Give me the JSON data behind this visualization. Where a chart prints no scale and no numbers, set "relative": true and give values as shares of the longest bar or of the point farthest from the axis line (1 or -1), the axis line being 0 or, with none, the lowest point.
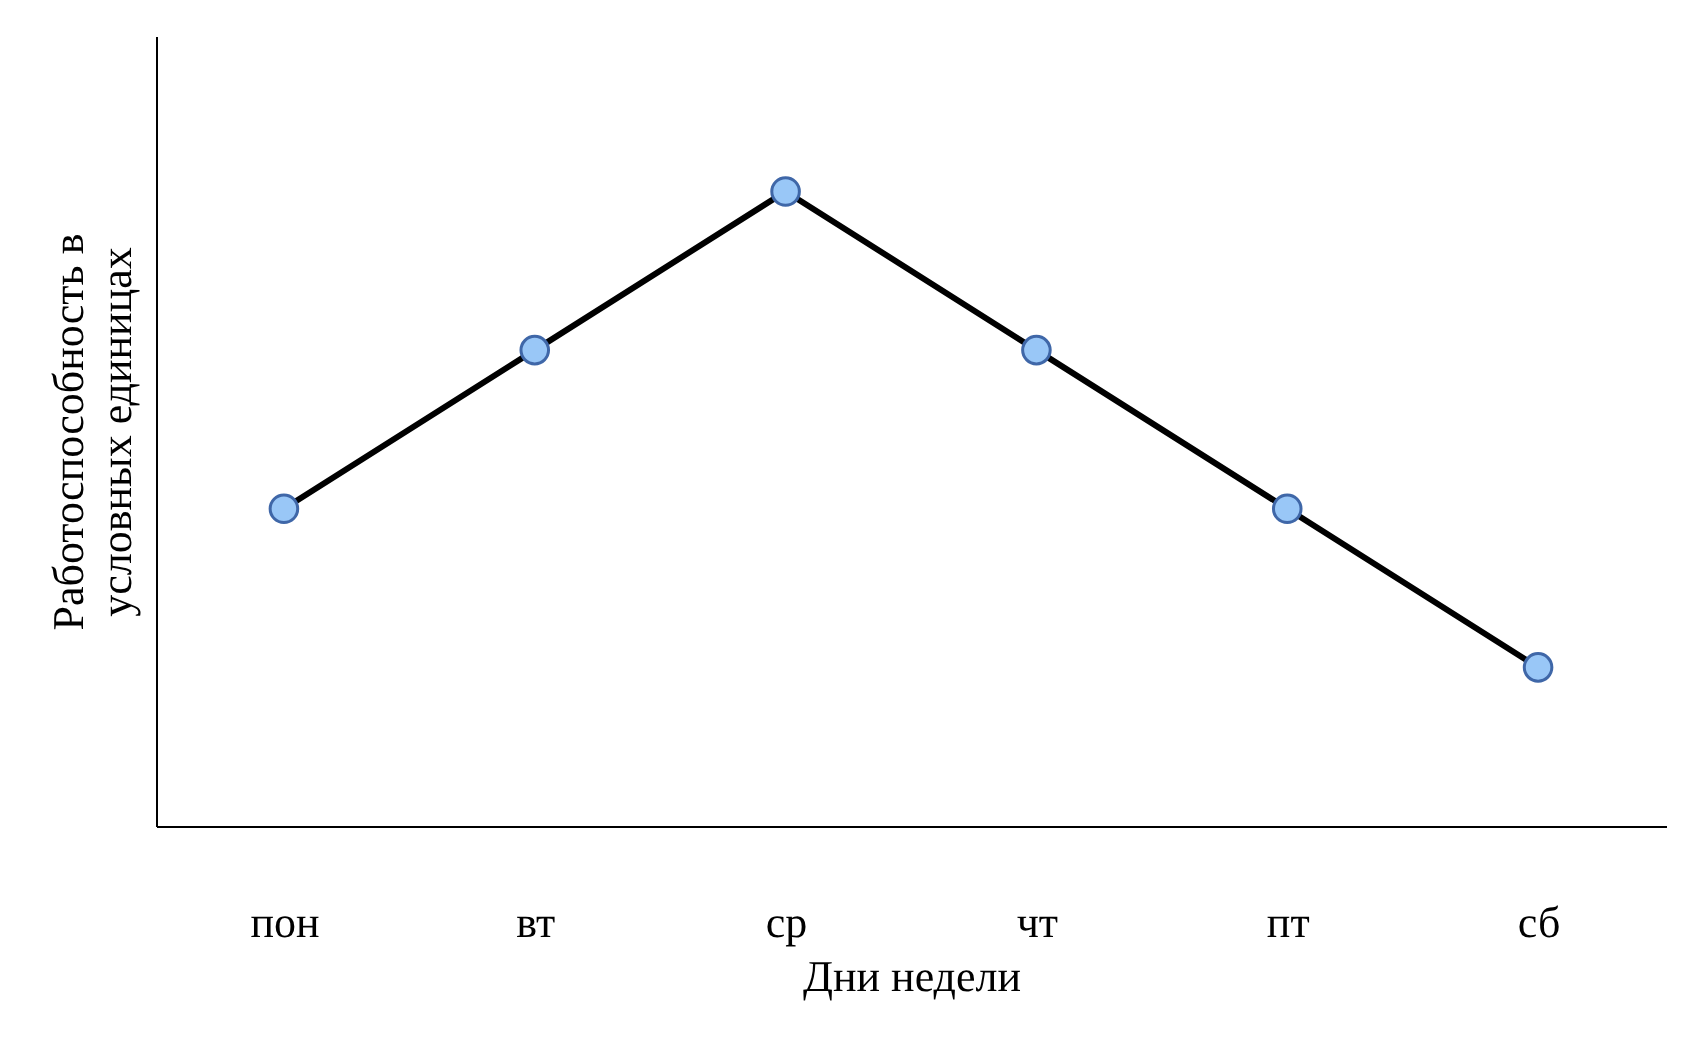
{
  "chart_data": {
    "type": "line",
    "relative": true,
    "xlabel": "Дни недели",
    "ylabel": "Работоспособность в\nусловных единицах",
    "categories": [
      "пон",
      "вт",
      "ср",
      "чт",
      "пт",
      "сб"
    ],
    "series": [
      {
        "color": "#000000",
        "values": [
          0.5,
          0.75,
          1,
          0.75,
          0.5,
          0.25
        ]
      }
    ],
    "marker": "circle",
    "line_style": "solid",
    "grid": false
  }
}
